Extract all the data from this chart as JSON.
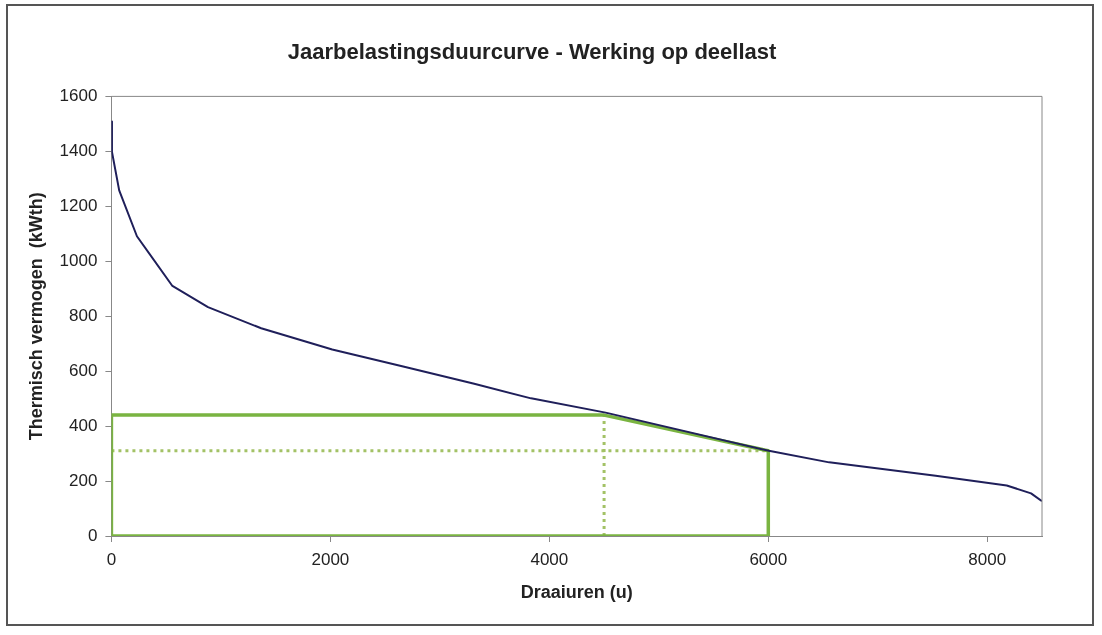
{
  "chart_data": {
    "type": "line",
    "title": "Jaarbelastingsduurcurve - Werking op deellast",
    "xlabel": "Draaiuren (u)",
    "ylabel": "Thermisch vermogen  (kWth)",
    "xlim": [
      0,
      8500
    ],
    "xticks": [
      0,
      2000,
      4000,
      6000,
      8000
    ],
    "ylim": [
      0,
      1600
    ],
    "yticks": [
      0,
      200,
      400,
      600,
      800,
      1000,
      1200,
      1400,
      1600
    ],
    "grid": false,
    "legend": false,
    "marker": "none",
    "series": [
      {
        "color": "#1f1f5a",
        "x": [
          0,
          5,
          71,
          233,
          557,
          882,
          1368,
          2017,
          2665,
          3314,
          3833,
          4514,
          6005,
          6556,
          7529,
          8178,
          8400,
          8500
        ],
        "values": [
          1509,
          1398,
          1258,
          1091,
          910,
          833,
          756,
          679,
          617,
          554,
          501,
          449,
          310,
          268,
          219,
          184,
          155,
          127
        ]
      },
      {
        "color": "#7ab441",
        "x": [
          0,
          0,
          4500,
          6000,
          6000
        ],
        "values": [
          0,
          440,
          440,
          310,
          0
        ],
        "line_style": "solid"
      },
      {
        "color": "#7ab441",
        "x": [
          0,
          6000
        ],
        "values": [
          0,
          0
        ],
        "line_style": "solid"
      },
      {
        "color": "#a3c266",
        "x": [
          0,
          6000
        ],
        "values": [
          310,
          310
        ],
        "line_style": "dotted"
      },
      {
        "color": "#a3c266",
        "x": [
          4500,
          4500
        ],
        "values": [
          0,
          440
        ],
        "line_style": "dotted"
      }
    ]
  }
}
